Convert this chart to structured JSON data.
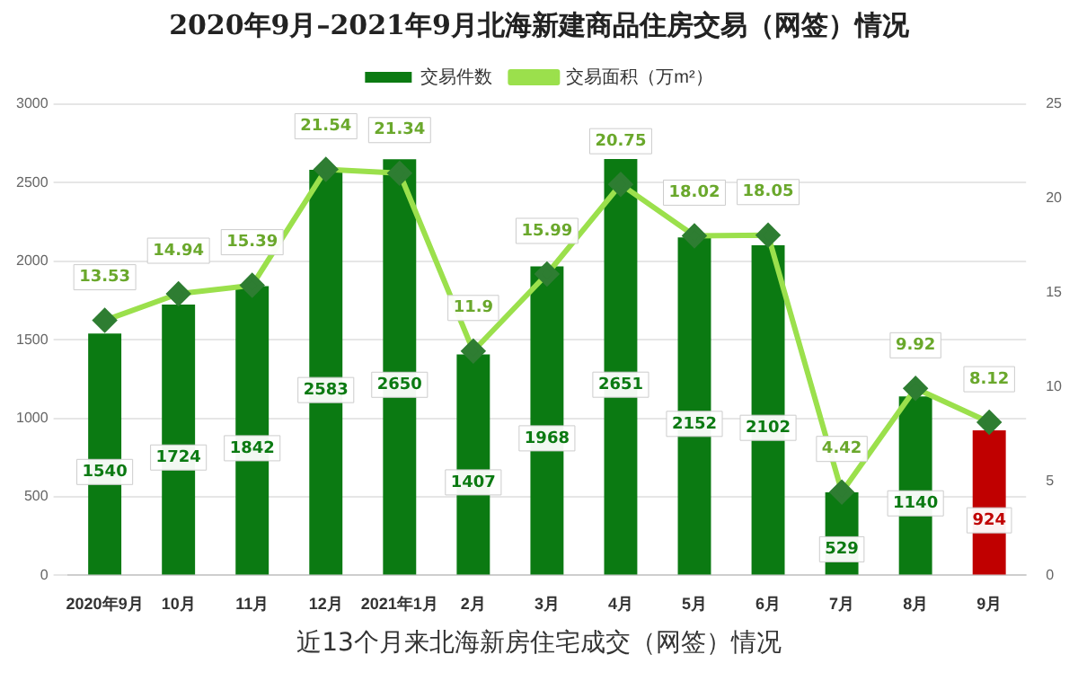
{
  "chart_data": {
    "type": "bar",
    "title": "2020年9月–2021年9月北海新建商品住房交易（网签）情况",
    "categories": [
      "2020年9月",
      "10月",
      "11月",
      "12月",
      "2021年1月",
      "2月",
      "3月",
      "4月",
      "5月",
      "6月",
      "7月",
      "8月",
      "9月"
    ],
    "series": [
      {
        "name": "交易件数",
        "color": "#0b7a12",
        "colors": [
          "#0b7a12",
          "#0b7a12",
          "#0b7a12",
          "#0b7a12",
          "#0b7a12",
          "#0b7a12",
          "#0b7a12",
          "#0b7a12",
          "#0b7a12",
          "#0b7a12",
          "#0b7a12",
          "#0b7a12",
          "#c00000"
        ],
        "values": [
          1540,
          1724,
          1842,
          2583,
          2650,
          1407,
          1968,
          2651,
          2152,
          2102,
          529,
          1140,
          924
        ]
      },
      {
        "name": "交易面积（万m²）",
        "type": "line",
        "axis": "y2",
        "color": "#9be04c",
        "values": [
          13.53,
          14.94,
          15.39,
          21.54,
          21.34,
          11.9,
          15.99,
          20.75,
          18.02,
          18.05,
          4.42,
          9.92,
          8.12
        ]
      }
    ],
    "ylim": [
      0,
      3000
    ],
    "yticks": [
      0,
      500,
      1000,
      1500,
      2000,
      2500,
      3000
    ],
    "y2lim": [
      0,
      25
    ],
    "y2ticks": [
      0,
      5,
      10,
      15,
      20,
      25
    ],
    "grid": "y",
    "legend": "top",
    "marker": "diamond",
    "data_labels": true,
    "annotations": [
      "近13个月来北海新房住宅成交（网签）情况"
    ]
  }
}
